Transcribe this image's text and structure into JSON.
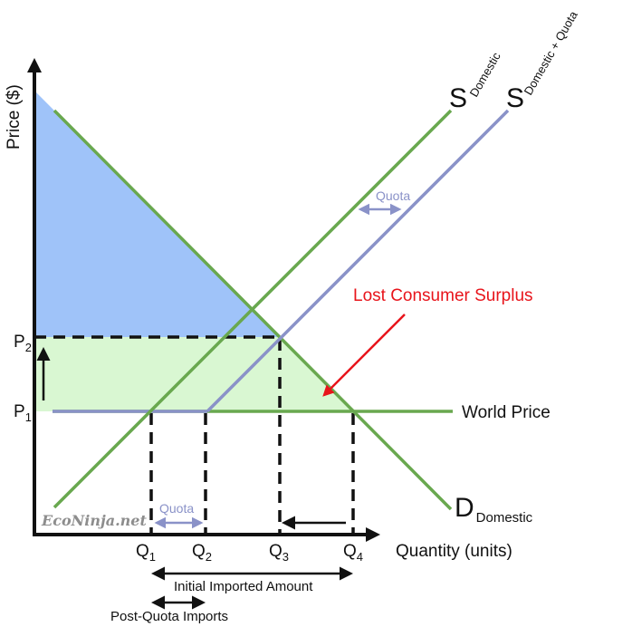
{
  "axes": {
    "y_label": "Price ($)",
    "x_label": "Quantity (units)"
  },
  "price_labels": {
    "p2": {
      "main": "P",
      "sub": "2"
    },
    "p1": {
      "main": "P",
      "sub": "1"
    }
  },
  "quantity_labels": [
    {
      "main": "Q",
      "sub": "1"
    },
    {
      "main": "Q",
      "sub": "2"
    },
    {
      "main": "Q",
      "sub": "3"
    },
    {
      "main": "Q",
      "sub": "4"
    }
  ],
  "curves": {
    "supply_domestic": {
      "main": "S",
      "sub": "Domestic"
    },
    "supply_quota": {
      "main": "S",
      "sub": "Domestic + Quota"
    },
    "demand": {
      "main": "D",
      "sub": "Domestic"
    },
    "world_price": "World Price"
  },
  "annotations": {
    "quota_top": "Quota",
    "quota_bottom": "Quota",
    "lost_consumer_surplus": "Lost Consumer Surplus",
    "initial_imports": "Initial Imported Amount",
    "post_quota_imports": "Post-Quota Imports"
  },
  "watermark": "EcoNinja.net",
  "colors": {
    "consumer_surplus_fill": "#9fc3f9",
    "lost_surplus_fill": "#d9f7d2",
    "curve_green": "#69a84f",
    "curve_blue": "#8a92c8",
    "arrow_red": "#e8141b",
    "axis": "#111111"
  }
}
